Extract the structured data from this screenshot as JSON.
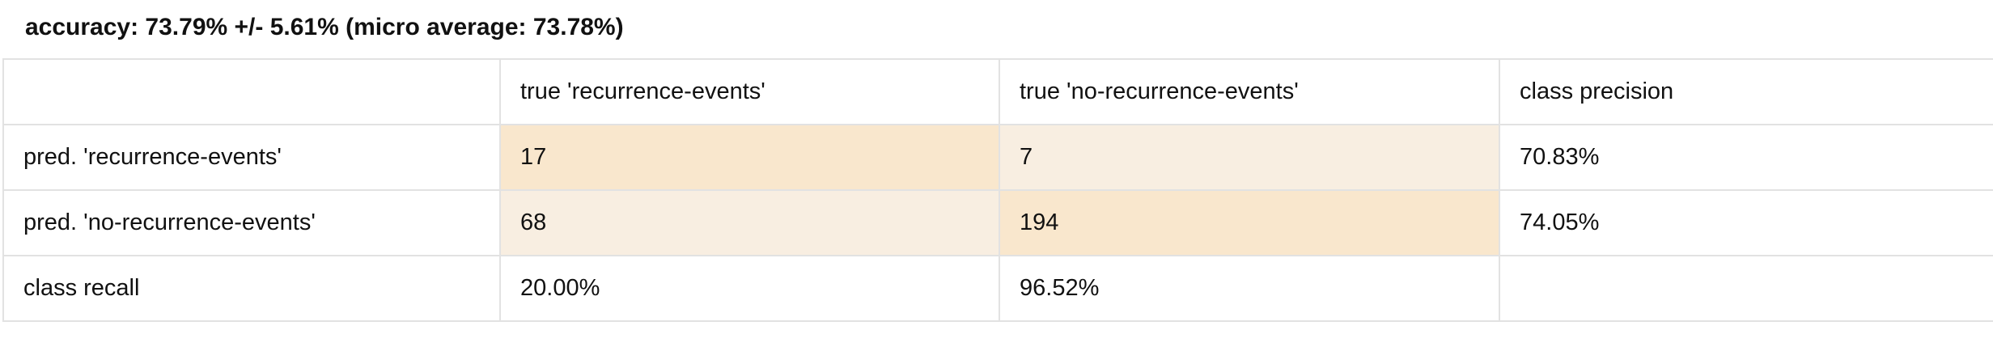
{
  "title": "accuracy: 73.79% +/- 5.61% (micro average: 73.78%)",
  "matrix": {
    "header": [
      "",
      "true 'recurrence-events'",
      "true 'no-recurrence-events'",
      "class precision"
    ],
    "rows": [
      {
        "label": "pred. 'recurrence-events'",
        "cells": [
          "17",
          "7"
        ],
        "precision": "70.83%"
      },
      {
        "label": "pred. 'no-recurrence-events'",
        "cells": [
          "68",
          "194"
        ],
        "precision": "74.05%"
      }
    ],
    "recall_row": {
      "label": "class recall",
      "cells": [
        "20.00%",
        "96.52%"
      ],
      "precision": ""
    }
  },
  "colors": {
    "diagonal_cell": "#f9e7cd",
    "off_diagonal_cell": "#f8eee1",
    "grid_line": "#e2e2e2"
  }
}
